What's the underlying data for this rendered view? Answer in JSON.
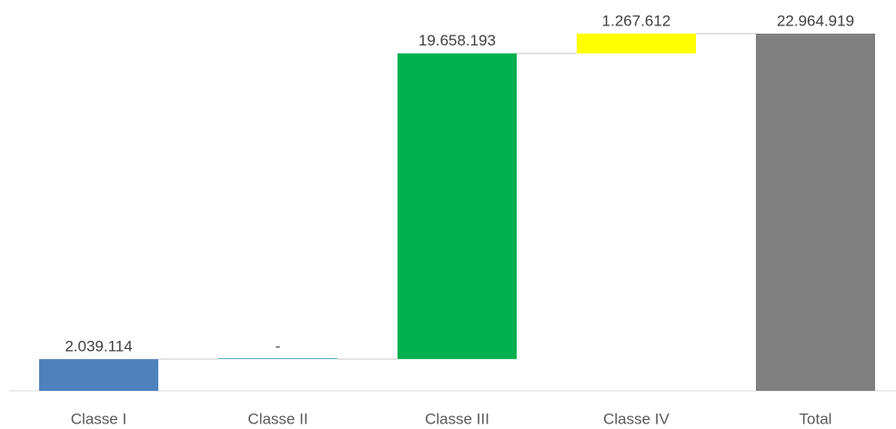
{
  "chart_data": {
    "type": "waterfall",
    "categories": [
      "Classe I",
      "Classe II",
      "Classe III",
      "Classe IV",
      "Total"
    ],
    "values": [
      2039114,
      0,
      19658193,
      1267612,
      22964919
    ],
    "value_labels": [
      "2.039.114",
      "-",
      "19.658.193",
      "1.267.612",
      "22.964.919"
    ],
    "colors": [
      "#4f81bd",
      "#4bacc6",
      "#00b050",
      "#ffff00",
      "#808080"
    ],
    "last_is_total": true
  }
}
